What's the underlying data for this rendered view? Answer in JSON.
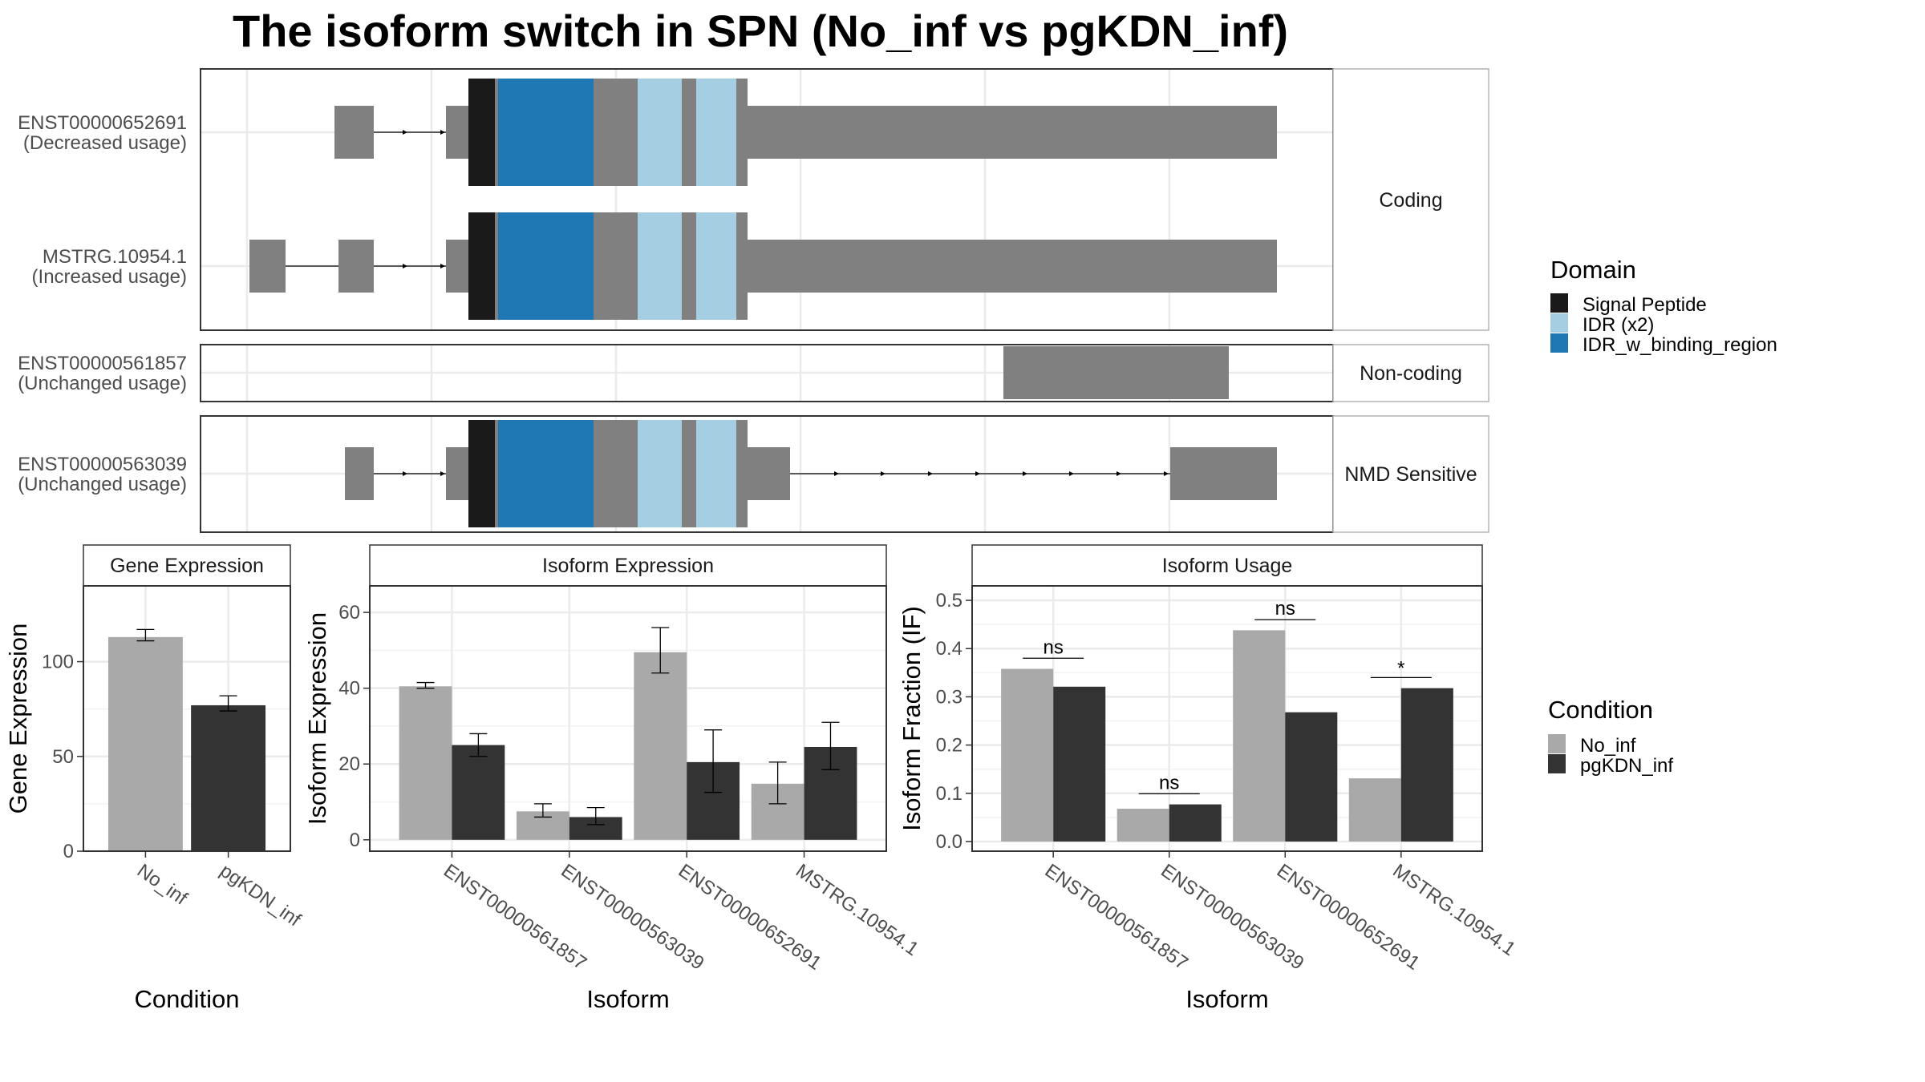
{
  "title": "The isoform switch in SPN (No_inf vs pgKDN_inf)",
  "colors": {
    "exon": "#808080",
    "signal_peptide": "#1a1a1a",
    "idr": "#a6cee3",
    "idr_binding": "#1f78b4",
    "no_inf": "#a9a9a9",
    "pgkdn_inf": "#333333",
    "grid": "#ebebeb",
    "panel_border": "#333333"
  },
  "isoform_structure": {
    "rows": [
      {
        "id": "ENST00000652691",
        "usage": "(Decreased usage)",
        "facet": "Coding"
      },
      {
        "id": "MSTRG.10954.1",
        "usage": "(Increased usage)",
        "facet": "Coding"
      },
      {
        "id": "ENST00000561857",
        "usage": "(Unchanged usage)",
        "facet": "Non-coding"
      },
      {
        "id": "ENST00000563039",
        "usage": "(Unchanged usage)",
        "facet": "NMD Sensitive"
      }
    ],
    "facets": [
      "Coding",
      "Non-coding",
      "NMD Sensitive"
    ]
  },
  "legend_domain": {
    "title": "Domain",
    "items": [
      {
        "label": "Signal Peptide",
        "color": "#1a1a1a"
      },
      {
        "label": "IDR (x2)",
        "color": "#a6cee3"
      },
      {
        "label": "IDR_w_binding_region",
        "color": "#1f78b4"
      }
    ]
  },
  "legend_condition": {
    "title": "Condition",
    "items": [
      {
        "label": "No_inf",
        "color": "#a9a9a9"
      },
      {
        "label": "pgKDN_inf",
        "color": "#333333"
      }
    ]
  },
  "chart_data": [
    {
      "type": "bar",
      "strip": "Gene Expression",
      "xlabel": "Condition",
      "ylabel": "Gene Expression",
      "categories": [
        "No_inf",
        "pgKDN_inf"
      ],
      "values": [
        113,
        77
      ],
      "errors": [
        [
          111,
          117
        ],
        [
          74,
          82
        ]
      ],
      "yticks": [
        0,
        50,
        100
      ],
      "ylim": [
        0,
        140
      ]
    },
    {
      "type": "bar",
      "strip": "Isoform Expression",
      "xlabel": "Isoform",
      "ylabel": "Isoform Expression",
      "categories": [
        "ENST00000561857",
        "ENST00000563039",
        "ENST00000652691",
        "MSTRG.10954.1"
      ],
      "series": [
        {
          "name": "No_inf",
          "values": [
            40.5,
            7.5,
            49.5,
            14.8
          ],
          "errors": [
            [
              40,
              41.5
            ],
            [
              6,
              9.5
            ],
            [
              44,
              56
            ],
            [
              9.5,
              20.5
            ]
          ]
        },
        {
          "name": "pgKDN_inf",
          "values": [
            25,
            6,
            20.5,
            24.5
          ],
          "errors": [
            [
              22,
              28
            ],
            [
              4,
              8.5
            ],
            [
              12.5,
              29
            ],
            [
              18.5,
              31
            ]
          ]
        }
      ],
      "yticks": [
        0,
        20,
        40,
        60
      ],
      "ylim": [
        -3,
        67
      ]
    },
    {
      "type": "bar",
      "strip": "Isoform Usage",
      "xlabel": "Isoform",
      "ylabel": "Isoform Fraction (IF)",
      "categories": [
        "ENST00000561857",
        "ENST00000563039",
        "ENST00000652691",
        "MSTRG.10954.1"
      ],
      "series": [
        {
          "name": "No_inf",
          "values": [
            0.358,
            0.068,
            0.438,
            0.131
          ]
        },
        {
          "name": "pgKDN_inf",
          "values": [
            0.321,
            0.077,
            0.268,
            0.318
          ]
        }
      ],
      "significance": [
        "ns",
        "ns",
        "ns",
        "*"
      ],
      "yticks": [
        0.0,
        0.1,
        0.2,
        0.3,
        0.4,
        0.5
      ],
      "ylim": [
        -0.02,
        0.53
      ]
    }
  ]
}
